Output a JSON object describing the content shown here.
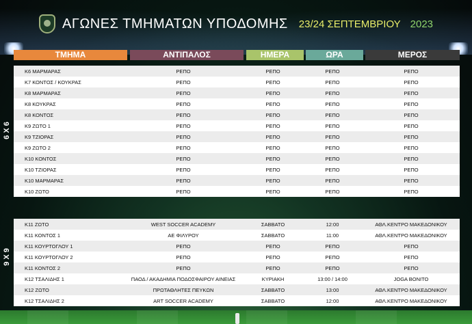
{
  "header": {
    "title": "ΑΓΩΝΕΣ ΤΜΗΜΑΤΩΝ ΥΠΟΔΟΜΗΣ",
    "date": "23/24 ΣΕΠΤΕΜΒΡΙΟΥ",
    "year": "2023"
  },
  "columns": [
    {
      "label": "ΤΜΗΜΑ",
      "color": "#e8883c"
    },
    {
      "label": "ΑΝΤΙΠΑΛΟΣ",
      "color": "#7a4a5a"
    },
    {
      "label": "ΗΜΕΡΑ",
      "color": "#a9c46a"
    },
    {
      "label": "ΩΡΑ",
      "color": "#6aa99a"
    },
    {
      "label": "ΜΕΡΟΣ",
      "color": "#3a3a3a"
    }
  ],
  "section_6x6": {
    "label": "6 X 6",
    "rows": [
      [
        "Κ6 ΜΑΡΜΑΡΑΣ",
        "ΡΕΠΟ",
        "ΡΕΠΟ",
        "ΡΕΠΟ",
        "ΡΕΠΟ"
      ],
      [
        "Κ7 ΚΟΝΤΟΣ / ΚΟΥΚΡΑΣ",
        "ΡΕΠΟ",
        "ΡΕΠΟ",
        "ΡΕΠΟ",
        "ΡΕΠΟ"
      ],
      [
        "Κ8 ΜΑΡΜΑΡΑΣ",
        "ΡΕΠΟ",
        "ΡΕΠΟ",
        "ΡΕΠΟ",
        "ΡΕΠΟ"
      ],
      [
        "Κ8 ΚΟΥΚΡΑΣ",
        "ΡΕΠΟ",
        "ΡΕΠΟ",
        "ΡΕΠΟ",
        "ΡΕΠΟ"
      ],
      [
        "Κ8 ΚΟΝΤΟΣ",
        "ΡΕΠΟ",
        "ΡΕΠΟ",
        "ΡΕΠΟ",
        "ΡΕΠΟ"
      ],
      [
        "Κ9 ΖΩΤΟ 1",
        "ΡΕΠΟ",
        "ΡΕΠΟ",
        "ΡΕΠΟ",
        "ΡΕΠΟ"
      ],
      [
        "Κ9 ΤΖΙΟΡΑΣ",
        "ΡΕΠΟ",
        "ΡΕΠΟ",
        "ΡΕΠΟ",
        "ΡΕΠΟ"
      ],
      [
        "Κ9 ΖΩΤΟ 2",
        "ΡΕΠΟ",
        "ΡΕΠΟ",
        "ΡΕΠΟ",
        "ΡΕΠΟ"
      ],
      [
        "Κ10 ΚΟΝΤΟΣ",
        "ΡΕΠΟ",
        "ΡΕΠΟ",
        "ΡΕΠΟ",
        "ΡΕΠΟ"
      ],
      [
        "Κ10 ΤΖΙΟΡΑΣ",
        "ΡΕΠΟ",
        "ΡΕΠΟ",
        "ΡΕΠΟ",
        "ΡΕΠΟ"
      ],
      [
        "Κ10 ΜΑΡΜΑΡΑΣ",
        "ΡΕΠΟ",
        "ΡΕΠΟ",
        "ΡΕΠΟ",
        "ΡΕΠΟ"
      ],
      [
        "Κ10 ΖΩΤΟ",
        "ΡΕΠΟ",
        "ΡΕΠΟ",
        "ΡΕΠΟ",
        "ΡΕΠΟ"
      ]
    ]
  },
  "section_9x9": {
    "label": "9 X 9",
    "rows": [
      [
        "Κ11 ΖΩΤΟ",
        "WEST SOCCER ACADEMY",
        "ΣΑΒΒΑΤΟ",
        "12:00",
        "ΑΘΛ.ΚΕΝΤΡΟ ΜΑΚΕΔΟΝΙΚΟΥ"
      ],
      [
        "Κ11 ΚΟΝΤΟΣ 1",
        "ΑΕ ΦΙΛΥΡΟΥ",
        "ΣΑΒΒΑΤΟ",
        "11:00",
        "ΑΘΛ.ΚΕΝΤΡΟ ΜΑΚΕΔΟΝΙΚΟΥ"
      ],
      [
        "Κ11 ΚΟΥΡΤΟΓΛΟΥ 1",
        "ΡΕΠΟ",
        "ΡΕΠΟ",
        "ΡΕΠΟ",
        "ΡΕΠΟ"
      ],
      [
        "Κ11 ΚΟΥΡΤΟΓΛΟΥ 2",
        "ΡΕΠΟ",
        "ΡΕΠΟ",
        "ΡΕΠΟ",
        "ΡΕΠΟ"
      ],
      [
        "Κ11 ΚΟΝΤΟΣ 2",
        "ΡΕΠΟ",
        "ΡΕΠΟ",
        "ΡΕΠΟ",
        "ΡΕΠΟ"
      ],
      [
        "Κ12 ΤΣΑΛΙΔΗΣ 1",
        "ΠΑΟΔ / ΑΚΑΔΗΜΙΑ ΠΟΔΟΣΦΑΙΡΟΥ ΑΙΝΕΙΑΣ",
        "ΚΥΡΙΑΚΗ",
        "13:00 / 14:00",
        "JOGA BONITO"
      ],
      [
        "Κ12 ΖΩΤΟ",
        "ΠΡΩΤΑΘΛΗΤΕΣ ΠΕΥΚΩΝ",
        "ΣΑΒΒΑΤΟ",
        "13:00",
        "ΑΘΛ.ΚΕΝΤΡΟ ΜΑΚΕΔΟΝΙΚΟΥ"
      ],
      [
        "Κ12 ΤΣΑΛΙΔΗΣ 2",
        "ART SOCCER ACADEMY",
        "ΣΑΒΒΑΤΟ",
        "12:00",
        "ΑΘΛ.ΚΕΝΤΡΟ ΜΑΚΕΔΟΝΙΚΟΥ"
      ]
    ]
  }
}
